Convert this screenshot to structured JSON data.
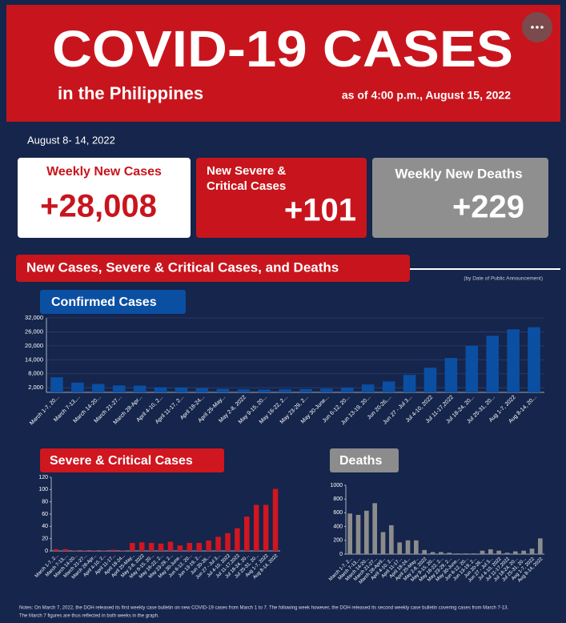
{
  "header": {
    "title": "COVID-19 CASES",
    "subtitle": "in the Philippines",
    "as_of": "as of 4:00 p.m., August 15, 2022"
  },
  "period": "August 8- 14, 2022",
  "stats": [
    {
      "label": "Weekly New Cases",
      "value": "+28,008"
    },
    {
      "label": "New Severe & Critical Cases",
      "value": "+101"
    },
    {
      "label": "Weekly New Deaths",
      "value": "+229"
    }
  ],
  "section": {
    "title": "New Cases, Severe & Critical Cases, and Deaths",
    "note": "(by Date of Public Announcement)"
  },
  "chart_data": [
    {
      "type": "bar",
      "title": "Confirmed Cases",
      "color": "#0b4fa3",
      "grid": true,
      "categories": [
        "March 1-7, 20...",
        "March 7-13,...",
        "March 14-20...",
        "March 21-27...",
        "March 28-Apr...",
        "April 4-10, 2...",
        "April 11-17, 2...",
        "April 18-24...",
        "April 25-May...",
        "May 2-8, 2022",
        "May 9-15, 20...",
        "May 16-22, 2...",
        "May 23-29, 2...",
        "May 30-June...",
        "Jun 6-12, 20...",
        "Jun 13-19, 20...",
        "Jun 20-26,...",
        "Jun 27 - Jul 3...",
        "Jul 4-10, 2022",
        "Jul 11-17,2022",
        "Jul 18-24, 20...",
        "Jul 25-31, 20...",
        "Aug 1-7, 2022",
        "Aug 8-14, 20..."
      ],
      "values": [
        6500,
        4200,
        3600,
        3000,
        2900,
        2200,
        2100,
        1800,
        1500,
        1300,
        1200,
        1300,
        1400,
        1600,
        2000,
        3400,
        4700,
        7500,
        10600,
        14800,
        20000,
        24300,
        27100,
        28008
      ],
      "ylim": [
        0,
        32000
      ],
      "yticks": [
        {
          "value": 2000,
          "label": "2,000"
        },
        {
          "value": 8000,
          "label": "8,000"
        },
        {
          "value": 14000,
          "label": "14,000"
        },
        {
          "value": 20000,
          "label": "20,000"
        },
        {
          "value": 26000,
          "label": "26,000"
        },
        {
          "value": 32000,
          "label": "32,000"
        }
      ]
    },
    {
      "type": "bar",
      "title": "Severe & Critical Cases",
      "color": "#d0161f",
      "grid": false,
      "categories": [
        "March 1-7, 2...",
        "March 7-13,...",
        "March 14-20...",
        "March 21-27...",
        "March 28-Apr...",
        "April 4-10, 2...",
        "April 11-17...",
        "April 18-24...",
        "April 25-May...",
        "May 2-8, 2022",
        "May 9-15, 20...",
        "May 16-22, 2...",
        "May 23-29, 2...",
        "May 30-June...",
        "Jun 6-12, 20...",
        "Jun 13-19, 2...",
        "Jun 20-26,...",
        "Jun 27 - Jul 3...",
        "Jul 4-10, 2022",
        "Jul 11-17,2022",
        "Jul 18-24, 20...",
        "Jul 25-31, 20...",
        "Aug 1-7, 2022",
        "Aug 8-14, 2022"
      ],
      "values": [
        3,
        3,
        1,
        1,
        1,
        1,
        2,
        1,
        13,
        14,
        13,
        12,
        15,
        9,
        13,
        13,
        17,
        23,
        29,
        37,
        56,
        75,
        75,
        101
      ],
      "ylim": [
        0,
        120
      ],
      "yticks": [
        0,
        20,
        40,
        60,
        80,
        100,
        120
      ]
    },
    {
      "type": "bar",
      "title": "Deaths",
      "color": "#8c8c8c",
      "grid": false,
      "categories": [
        "March 1-7, 2...",
        "March 7-13,...",
        "March 14-20...",
        "March 21-27...",
        "March 28-April...",
        "April 4-10, 2...",
        "April 11-17...",
        "April 18-24...",
        "April 25-May...",
        "May 2-8, 2022",
        "May 9-15, 20...",
        "May 16-22, 2...",
        "May 23-29, 2...",
        "May 30-June...",
        "Jun 6-12, 20...",
        "Jun 13-19, 2...",
        "Jun 20-26,...",
        "Jun 27 - Jul 3...",
        "Jul 4-10, 2022",
        "Jul 11-17,2022",
        "Jul 18-24, 20...",
        "Jul 25-31, 20...",
        "Aug 1-7, 2022",
        "Aug 8-14, 2022"
      ],
      "values": [
        590,
        570,
        630,
        740,
        320,
        420,
        170,
        200,
        200,
        60,
        30,
        30,
        20,
        10,
        10,
        10,
        50,
        70,
        50,
        20,
        40,
        50,
        80,
        229
      ],
      "ylim": [
        0,
        1000
      ],
      "yticks": [
        0,
        200,
        400,
        600,
        800,
        1000
      ]
    }
  ],
  "notes": [
    "Notes: On March 7, 2022, the DOH released its first weekly case bulletin on new COVID-19 cases from March 1 to 7. The following week however, the DOH released its second weekly case bulletin covering cases from March 7-13.",
    "The March 7 figures are thus reflected in both weeks in the graph."
  ]
}
